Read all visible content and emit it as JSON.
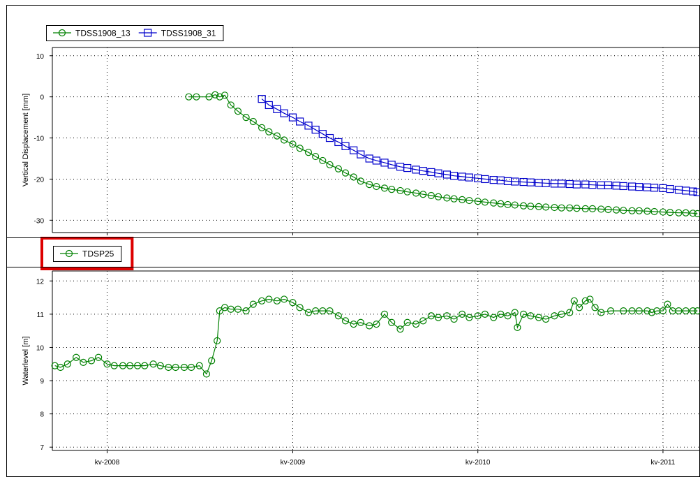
{
  "chart_data": [
    {
      "type": "line",
      "ylabel": "Vertical Displacement [mm]",
      "ylim": [
        -33,
        12
      ],
      "yticks": [
        10,
        0,
        -10,
        -20,
        -30
      ],
      "xlim": [
        "2007-09-15",
        "2011-03-15"
      ],
      "xticks": [
        {
          "date": "2008-01-01",
          "label": "kv-2008"
        },
        {
          "date": "2009-01-01",
          "label": "kv-2009"
        },
        {
          "date": "2010-01-01",
          "label": "kv-2010"
        },
        {
          "date": "2011-01-01",
          "label": "kv-2011"
        }
      ],
      "grid": true,
      "legend_placement": "top-left",
      "series": [
        {
          "name": "TDSS1908_13",
          "color": "#008000",
          "marker": "circle",
          "points": [
            [
              "2008-06-10",
              0
            ],
            [
              "2008-06-25",
              0
            ],
            [
              "2008-07-20",
              0
            ],
            [
              "2008-08-01",
              0.5
            ],
            [
              "2008-08-10",
              0
            ],
            [
              "2008-08-20",
              0.4
            ],
            [
              "2008-09-01",
              -2
            ],
            [
              "2008-09-15",
              -3.5
            ],
            [
              "2008-10-01",
              -5
            ],
            [
              "2008-10-15",
              -6
            ],
            [
              "2008-11-01",
              -7.5
            ],
            [
              "2008-11-15",
              -8.5
            ],
            [
              "2008-12-01",
              -9.5
            ],
            [
              "2008-12-15",
              -10.5
            ],
            [
              "2009-01-01",
              -11.5
            ],
            [
              "2009-01-15",
              -12.5
            ],
            [
              "2009-02-01",
              -13.5
            ],
            [
              "2009-02-15",
              -14.5
            ],
            [
              "2009-03-01",
              -15.5
            ],
            [
              "2009-03-15",
              -16.5
            ],
            [
              "2009-04-01",
              -17.5
            ],
            [
              "2009-04-15",
              -18.5
            ],
            [
              "2009-05-01",
              -19.5
            ],
            [
              "2009-05-15",
              -20.5
            ],
            [
              "2009-06-01",
              -21.3
            ],
            [
              "2009-06-15",
              -21.8
            ],
            [
              "2009-07-01",
              -22.2
            ],
            [
              "2009-07-15",
              -22.5
            ],
            [
              "2009-08-01",
              -22.8
            ],
            [
              "2009-08-15",
              -23.1
            ],
            [
              "2009-09-01",
              -23.4
            ],
            [
              "2009-09-15",
              -23.7
            ],
            [
              "2009-10-01",
              -24
            ],
            [
              "2009-10-15",
              -24.3
            ],
            [
              "2009-11-01",
              -24.6
            ],
            [
              "2009-11-15",
              -24.8
            ],
            [
              "2009-12-01",
              -25
            ],
            [
              "2009-12-15",
              -25.2
            ],
            [
              "2010-01-01",
              -25.4
            ],
            [
              "2010-01-15",
              -25.6
            ],
            [
              "2010-02-01",
              -25.8
            ],
            [
              "2010-02-15",
              -26
            ],
            [
              "2010-03-01",
              -26.2
            ],
            [
              "2010-03-15",
              -26.3
            ],
            [
              "2010-04-01",
              -26.5
            ],
            [
              "2010-04-15",
              -26.6
            ],
            [
              "2010-05-01",
              -26.7
            ],
            [
              "2010-05-15",
              -26.8
            ],
            [
              "2010-06-01",
              -26.9
            ],
            [
              "2010-06-15",
              -27
            ],
            [
              "2010-07-01",
              -27
            ],
            [
              "2010-07-15",
              -27.1
            ],
            [
              "2010-08-01",
              -27.2
            ],
            [
              "2010-08-15",
              -27.2
            ],
            [
              "2010-09-01",
              -27.3
            ],
            [
              "2010-09-15",
              -27.4
            ],
            [
              "2010-10-01",
              -27.5
            ],
            [
              "2010-10-15",
              -27.6
            ],
            [
              "2010-11-01",
              -27.7
            ],
            [
              "2010-11-15",
              -27.7
            ],
            [
              "2010-12-01",
              -27.8
            ],
            [
              "2010-12-15",
              -27.9
            ],
            [
              "2011-01-01",
              -28
            ],
            [
              "2011-01-15",
              -28.1
            ],
            [
              "2011-02-01",
              -28.2
            ],
            [
              "2011-02-15",
              -28.2
            ],
            [
              "2011-03-01",
              -28.3
            ],
            [
              "2011-03-10",
              -28.4
            ]
          ]
        },
        {
          "name": "TDSS1908_31",
          "color": "#0000cc",
          "marker": "square",
          "points": [
            [
              "2008-11-01",
              -0.5
            ],
            [
              "2008-11-15",
              -2
            ],
            [
              "2008-12-01",
              -3
            ],
            [
              "2008-12-15",
              -4
            ],
            [
              "2009-01-01",
              -5
            ],
            [
              "2009-01-15",
              -6
            ],
            [
              "2009-02-01",
              -7
            ],
            [
              "2009-02-15",
              -8
            ],
            [
              "2009-03-01",
              -9
            ],
            [
              "2009-03-15",
              -10
            ],
            [
              "2009-04-01",
              -11
            ],
            [
              "2009-04-15",
              -12
            ],
            [
              "2009-05-01",
              -13
            ],
            [
              "2009-05-15",
              -14
            ],
            [
              "2009-06-01",
              -15
            ],
            [
              "2009-06-15",
              -15.5
            ],
            [
              "2009-07-01",
              -16
            ],
            [
              "2009-07-15",
              -16.5
            ],
            [
              "2009-08-01",
              -17
            ],
            [
              "2009-08-15",
              -17.3
            ],
            [
              "2009-09-01",
              -17.7
            ],
            [
              "2009-09-15",
              -18
            ],
            [
              "2009-10-01",
              -18.3
            ],
            [
              "2009-10-15",
              -18.6
            ],
            [
              "2009-11-01",
              -18.9
            ],
            [
              "2009-11-15",
              -19.2
            ],
            [
              "2009-12-01",
              -19.4
            ],
            [
              "2009-12-15",
              -19.6
            ],
            [
              "2010-01-01",
              -19.8
            ],
            [
              "2010-01-15",
              -20
            ],
            [
              "2010-02-01",
              -20.2
            ],
            [
              "2010-02-15",
              -20.3
            ],
            [
              "2010-03-01",
              -20.5
            ],
            [
              "2010-03-15",
              -20.6
            ],
            [
              "2010-04-01",
              -20.7
            ],
            [
              "2010-04-15",
              -20.8
            ],
            [
              "2010-05-01",
              -20.9
            ],
            [
              "2010-05-15",
              -21
            ],
            [
              "2010-06-01",
              -21.1
            ],
            [
              "2010-06-15",
              -21.1
            ],
            [
              "2010-07-01",
              -21.2
            ],
            [
              "2010-07-15",
              -21.3
            ],
            [
              "2010-08-01",
              -21.3
            ],
            [
              "2010-08-15",
              -21.4
            ],
            [
              "2010-09-01",
              -21.5
            ],
            [
              "2010-09-15",
              -21.5
            ],
            [
              "2010-10-01",
              -21.6
            ],
            [
              "2010-10-15",
              -21.7
            ],
            [
              "2010-11-01",
              -21.8
            ],
            [
              "2010-11-15",
              -21.9
            ],
            [
              "2010-12-01",
              -22
            ],
            [
              "2010-12-15",
              -22.1
            ],
            [
              "2011-01-01",
              -22.2
            ],
            [
              "2011-01-15",
              -22.4
            ],
            [
              "2011-02-01",
              -22.6
            ],
            [
              "2011-02-15",
              -22.8
            ],
            [
              "2011-03-01",
              -23
            ],
            [
              "2011-03-10",
              -23.2
            ]
          ]
        }
      ]
    },
    {
      "type": "line",
      "ylabel": "Waterlevel [m]",
      "ylim": [
        6.9,
        12.3
      ],
      "yticks": [
        12,
        11,
        10,
        9,
        8,
        7
      ],
      "xlim": [
        "2007-09-15",
        "2011-03-15"
      ],
      "xticks": [
        {
          "date": "2008-01-01",
          "label": "kv-2008"
        },
        {
          "date": "2009-01-01",
          "label": "kv-2009"
        },
        {
          "date": "2010-01-01",
          "label": "kv-2010"
        },
        {
          "date": "2011-01-01",
          "label": "kv-2011"
        }
      ],
      "grid": true,
      "legend_placement": "top-left",
      "series": [
        {
          "name": "TDSP25",
          "color": "#008000",
          "marker": "circle",
          "points": [
            [
              "2007-09-20",
              9.45
            ],
            [
              "2007-10-01",
              9.4
            ],
            [
              "2007-10-15",
              9.5
            ],
            [
              "2007-11-01",
              9.7
            ],
            [
              "2007-11-15",
              9.55
            ],
            [
              "2007-12-01",
              9.6
            ],
            [
              "2007-12-15",
              9.7
            ],
            [
              "2008-01-01",
              9.5
            ],
            [
              "2008-01-15",
              9.45
            ],
            [
              "2008-02-01",
              9.45
            ],
            [
              "2008-02-15",
              9.45
            ],
            [
              "2008-03-01",
              9.45
            ],
            [
              "2008-03-15",
              9.45
            ],
            [
              "2008-04-01",
              9.5
            ],
            [
              "2008-04-15",
              9.45
            ],
            [
              "2008-05-01",
              9.4
            ],
            [
              "2008-05-15",
              9.4
            ],
            [
              "2008-06-01",
              9.4
            ],
            [
              "2008-06-15",
              9.4
            ],
            [
              "2008-07-01",
              9.45
            ],
            [
              "2008-07-15",
              9.2
            ],
            [
              "2008-07-25",
              9.6
            ],
            [
              "2008-08-05",
              10.2
            ],
            [
              "2008-08-10",
              11.1
            ],
            [
              "2008-08-20",
              11.2
            ],
            [
              "2008-09-01",
              11.15
            ],
            [
              "2008-09-15",
              11.15
            ],
            [
              "2008-10-01",
              11.1
            ],
            [
              "2008-10-15",
              11.3
            ],
            [
              "2008-11-01",
              11.4
            ],
            [
              "2008-11-15",
              11.45
            ],
            [
              "2008-12-01",
              11.4
            ],
            [
              "2008-12-15",
              11.45
            ],
            [
              "2009-01-01",
              11.35
            ],
            [
              "2009-01-15",
              11.2
            ],
            [
              "2009-02-01",
              11.05
            ],
            [
              "2009-02-15",
              11.1
            ],
            [
              "2009-03-01",
              11.1
            ],
            [
              "2009-03-15",
              11.1
            ],
            [
              "2009-04-01",
              10.95
            ],
            [
              "2009-04-15",
              10.8
            ],
            [
              "2009-05-01",
              10.7
            ],
            [
              "2009-05-15",
              10.75
            ],
            [
              "2009-06-01",
              10.65
            ],
            [
              "2009-06-15",
              10.7
            ],
            [
              "2009-07-01",
              11.0
            ],
            [
              "2009-07-15",
              10.75
            ],
            [
              "2009-08-01",
              10.55
            ],
            [
              "2009-08-15",
              10.75
            ],
            [
              "2009-09-01",
              10.7
            ],
            [
              "2009-09-15",
              10.8
            ],
            [
              "2009-10-01",
              10.95
            ],
            [
              "2009-10-15",
              10.9
            ],
            [
              "2009-11-01",
              10.95
            ],
            [
              "2009-11-15",
              10.85
            ],
            [
              "2009-12-01",
              11.0
            ],
            [
              "2009-12-15",
              10.9
            ],
            [
              "2010-01-01",
              10.95
            ],
            [
              "2010-01-15",
              11.0
            ],
            [
              "2010-02-01",
              10.9
            ],
            [
              "2010-02-15",
              11.0
            ],
            [
              "2010-03-01",
              10.95
            ],
            [
              "2010-03-15",
              11.05
            ],
            [
              "2010-03-20",
              10.6
            ],
            [
              "2010-04-01",
              11.0
            ],
            [
              "2010-04-15",
              10.95
            ],
            [
              "2010-05-01",
              10.9
            ],
            [
              "2010-05-15",
              10.85
            ],
            [
              "2010-06-01",
              10.95
            ],
            [
              "2010-06-15",
              11.0
            ],
            [
              "2010-07-01",
              11.05
            ],
            [
              "2010-07-10",
              11.4
            ],
            [
              "2010-07-20",
              11.2
            ],
            [
              "2010-08-01",
              11.4
            ],
            [
              "2010-08-10",
              11.45
            ],
            [
              "2010-08-20",
              11.2
            ],
            [
              "2010-09-01",
              11.05
            ],
            [
              "2010-09-20",
              11.1
            ],
            [
              "2010-10-15",
              11.1
            ],
            [
              "2010-11-01",
              11.1
            ],
            [
              "2010-11-15",
              11.1
            ],
            [
              "2010-12-01",
              11.1
            ],
            [
              "2010-12-10",
              11.05
            ],
            [
              "2010-12-20",
              11.1
            ],
            [
              "2011-01-01",
              11.1
            ],
            [
              "2011-01-10",
              11.3
            ],
            [
              "2011-01-20",
              11.1
            ],
            [
              "2011-02-01",
              11.1
            ],
            [
              "2011-02-15",
              11.1
            ],
            [
              "2011-03-01",
              11.1
            ],
            [
              "2011-03-10",
              11.1
            ]
          ]
        }
      ]
    }
  ],
  "highlight_color": "#dd0000"
}
